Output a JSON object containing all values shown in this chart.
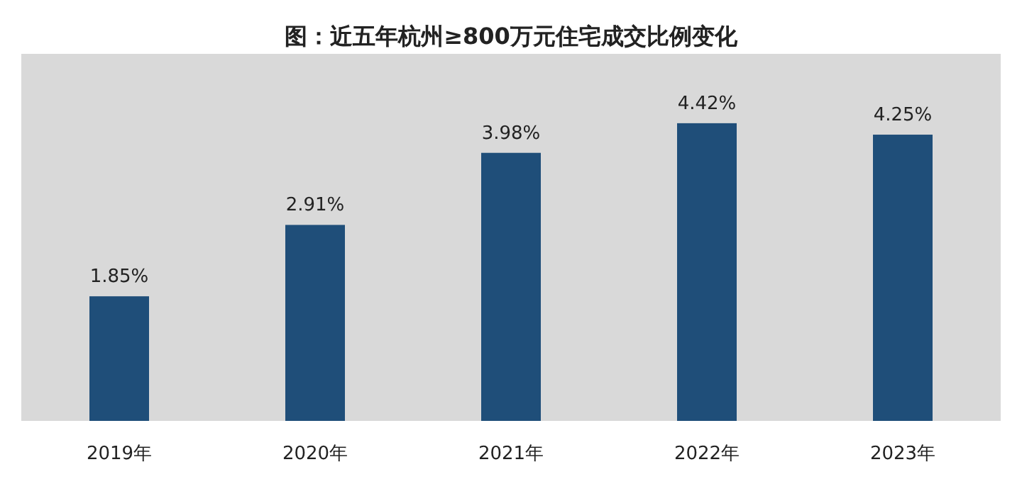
{
  "chart_data": {
    "type": "bar",
    "title": "图：近五年杭州≥800万元住宅成交比例变化",
    "categories": [
      "2019年",
      "2020年",
      "2021年",
      "2022年",
      "2023年"
    ],
    "values": [
      1.85,
      2.91,
      3.98,
      4.42,
      4.25
    ],
    "value_labels": [
      "1.85%",
      "2.91%",
      "3.98%",
      "4.42%",
      "4.25%"
    ],
    "color": "#1f4e79",
    "grid": false
  }
}
